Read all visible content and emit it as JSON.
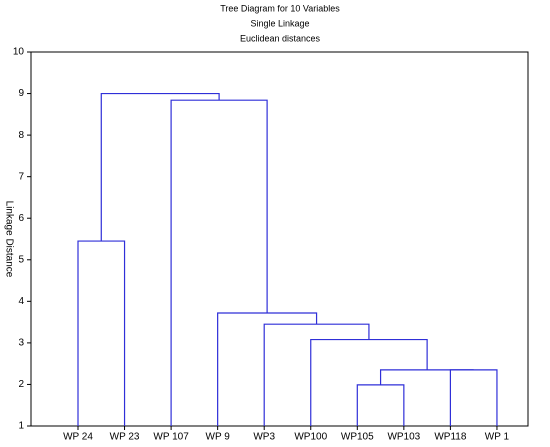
{
  "chart_data": {
    "type": "dendrogram",
    "title": "Tree Diagram for 10 Variables",
    "subtitle": "Single Linkage",
    "subtitle2": "Euclidean distances",
    "y_label": "Linkage Distance",
    "categories": [
      "WP 24",
      "WP 23",
      "WP 107",
      "WP 9",
      "WP3",
      "WP100",
      "WP105",
      "WP103",
      "WP118",
      "WP 1"
    ],
    "merges": [
      [
        6,
        7,
        1.99
      ],
      [
        8,
        9,
        2.35
      ],
      [
        10,
        11,
        2.35
      ],
      [
        5,
        12,
        3.08
      ],
      [
        4,
        13,
        3.45
      ],
      [
        3,
        14,
        3.72
      ],
      [
        2,
        15,
        8.84
      ],
      [
        0,
        1,
        5.45
      ],
      [
        17,
        16,
        9.0
      ]
    ],
    "color": "#2f2fd8",
    "ylim": [
      1,
      10
    ],
    "yticks": [
      1,
      2,
      3,
      4,
      5,
      6,
      7,
      8,
      9,
      10
    ]
  }
}
